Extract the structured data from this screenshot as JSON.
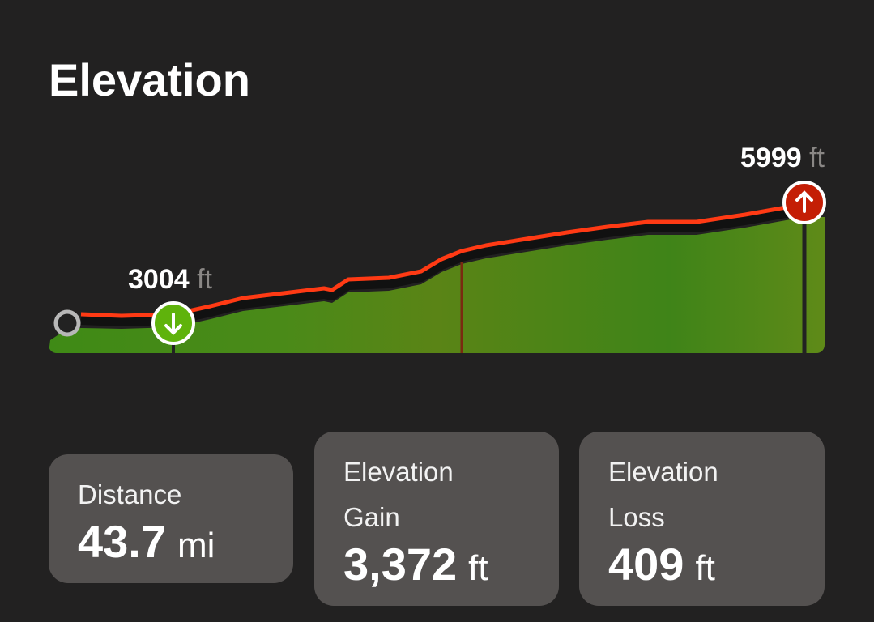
{
  "header": {
    "title": "Elevation"
  },
  "profile": {
    "low": {
      "value": "3004",
      "unit": "ft"
    },
    "high": {
      "value": "5999",
      "unit": "ft"
    }
  },
  "stats": [
    {
      "label": "Distance",
      "value": "43.7",
      "unit": "mi"
    },
    {
      "label": "Elevation Gain",
      "value": "3,372",
      "unit": "ft"
    },
    {
      "label": "Elevation Loss",
      "value": "409",
      "unit": "ft"
    }
  ]
}
